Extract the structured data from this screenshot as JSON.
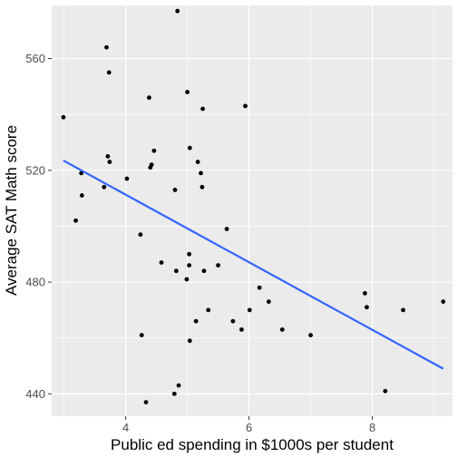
{
  "chart_data": {
    "type": "scatter",
    "xlabel": "Public ed spending in $1000s per student",
    "ylabel": "Average SAT Math score",
    "xlim": [
      2.8,
      9.3
    ],
    "ylim": [
      432,
      579
    ],
    "xticks": [
      4,
      6,
      8
    ],
    "yticks": [
      440,
      480,
      520,
      560
    ],
    "grid": true,
    "colors": {
      "panel": "#ebebeb",
      "grid": "#ffffff",
      "points": "#000000",
      "fit_line": "#3366ff"
    },
    "points": [
      {
        "x": 2.99,
        "y": 539
      },
      {
        "x": 3.19,
        "y": 502
      },
      {
        "x": 3.28,
        "y": 519
      },
      {
        "x": 3.29,
        "y": 511
      },
      {
        "x": 3.65,
        "y": 514
      },
      {
        "x": 3.69,
        "y": 564
      },
      {
        "x": 3.71,
        "y": 525
      },
      {
        "x": 3.73,
        "y": 555
      },
      {
        "x": 3.74,
        "y": 523
      },
      {
        "x": 4.02,
        "y": 517
      },
      {
        "x": 4.24,
        "y": 497
      },
      {
        "x": 4.26,
        "y": 461
      },
      {
        "x": 4.33,
        "y": 437
      },
      {
        "x": 4.38,
        "y": 546
      },
      {
        "x": 4.4,
        "y": 521
      },
      {
        "x": 4.42,
        "y": 522
      },
      {
        "x": 4.46,
        "y": 527
      },
      {
        "x": 4.58,
        "y": 487
      },
      {
        "x": 4.79,
        "y": 440
      },
      {
        "x": 4.8,
        "y": 513
      },
      {
        "x": 4.82,
        "y": 484
      },
      {
        "x": 4.84,
        "y": 577
      },
      {
        "x": 4.86,
        "y": 443
      },
      {
        "x": 4.99,
        "y": 481
      },
      {
        "x": 5.0,
        "y": 548
      },
      {
        "x": 5.03,
        "y": 490
      },
      {
        "x": 5.03,
        "y": 486
      },
      {
        "x": 5.04,
        "y": 528
      },
      {
        "x": 5.04,
        "y": 459
      },
      {
        "x": 5.14,
        "y": 466
      },
      {
        "x": 5.17,
        "y": 523
      },
      {
        "x": 5.22,
        "y": 519
      },
      {
        "x": 5.24,
        "y": 514
      },
      {
        "x": 5.25,
        "y": 542
      },
      {
        "x": 5.27,
        "y": 484
      },
      {
        "x": 5.34,
        "y": 470
      },
      {
        "x": 5.5,
        "y": 486
      },
      {
        "x": 5.64,
        "y": 499
      },
      {
        "x": 5.74,
        "y": 466
      },
      {
        "x": 5.88,
        "y": 463
      },
      {
        "x": 5.94,
        "y": 543
      },
      {
        "x": 6.01,
        "y": 470
      },
      {
        "x": 6.17,
        "y": 478
      },
      {
        "x": 6.32,
        "y": 473
      },
      {
        "x": 6.54,
        "y": 463
      },
      {
        "x": 7.0,
        "y": 461
      },
      {
        "x": 7.88,
        "y": 476
      },
      {
        "x": 7.91,
        "y": 471
      },
      {
        "x": 8.21,
        "y": 441
      },
      {
        "x": 8.5,
        "y": 470
      },
      {
        "x": 9.15,
        "y": 473
      }
    ],
    "fit_line": {
      "x": [
        2.99,
        9.15
      ],
      "y": [
        523.5,
        449.0
      ]
    }
  }
}
